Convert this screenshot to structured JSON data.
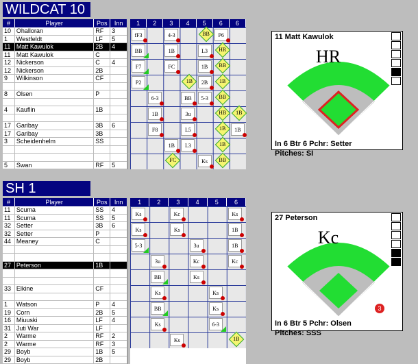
{
  "teams": [
    {
      "name": "WILDCAT 10",
      "headers": [
        "#",
        "Player",
        "Pos",
        "Inn"
      ],
      "innings": [
        "1",
        "2",
        "3",
        "4",
        "5",
        "6",
        "6"
      ],
      "rows": [
        [
          "10",
          "Ohalloran",
          "RF",
          "3"
        ],
        [
          "1",
          "Westfeldt",
          "LF",
          "5"
        ],
        [
          "11",
          "Matt Kawulok",
          "2B",
          "4"
        ],
        [
          "11",
          "Matt Kawulok",
          "C",
          ""
        ],
        [
          "12",
          "Nickerson",
          "C",
          "4"
        ],
        [
          "12",
          "Nickerson",
          "2B",
          ""
        ],
        [
          "9",
          "Wilkinson",
          "CF",
          ""
        ],
        [
          "",
          "",
          "",
          ""
        ],
        [
          "8",
          "Olsen",
          "P",
          ""
        ],
        [
          "",
          "",
          "",
          ""
        ],
        [
          "4",
          "Kauflin",
          "1B",
          ""
        ],
        [
          "",
          "",
          "",
          ""
        ],
        [
          "17",
          "Garibay",
          "3B",
          "6"
        ],
        [
          "17",
          "Garibay",
          "3B",
          ""
        ],
        [
          "3",
          "Scheidenhelm",
          "SS",
          ""
        ],
        [
          "",
          "",
          "",
          ""
        ],
        [
          "",
          "",
          "",
          ""
        ],
        [
          "5",
          "Swan",
          "RF",
          "5"
        ]
      ],
      "selected": 2
    },
    {
      "name": "SH 1",
      "headers": [
        "#",
        "Player",
        "Pos",
        "Inn"
      ],
      "innings": [
        "1",
        "2",
        "3",
        "4",
        "5",
        "6"
      ],
      "rows": [
        [
          "11",
          "Scuma",
          "SS",
          "4"
        ],
        [
          "11",
          "Scuma",
          "SS",
          "5"
        ],
        [
          "32",
          "Setter",
          "3B",
          "6"
        ],
        [
          "32",
          "Setter",
          "P",
          ""
        ],
        [
          "44",
          "Meaney",
          "C",
          ""
        ],
        [
          "",
          "",
          "",
          ""
        ],
        [
          "",
          "",
          "",
          ""
        ],
        [
          "27",
          "Peterson",
          "1B",
          ""
        ],
        [
          "",
          "",
          "",
          ""
        ],
        [
          "",
          "",
          "",
          ""
        ],
        [
          "33",
          "Elkine",
          "CF",
          ""
        ],
        [
          "",
          "",
          "",
          ""
        ],
        [
          "1",
          "Watson",
          "P",
          "4"
        ],
        [
          "19",
          "Corn",
          "2B",
          "5"
        ],
        [
          "16",
          "Miuuski",
          "LF",
          "4"
        ],
        [
          "31",
          "Juti War",
          "LF",
          ""
        ],
        [
          "2",
          "Warme",
          "RF",
          "2"
        ],
        [
          "2",
          "Warme",
          "RF",
          "3"
        ],
        [
          "29",
          "Boyb",
          "1B",
          "5"
        ],
        [
          "29",
          "Boyb",
          "2B",
          ""
        ]
      ],
      "selected": 7
    }
  ],
  "marks1": [
    [
      "fF3",
      "dot",
      0,
      0
    ],
    [
      "4-3",
      "dot",
      2,
      0
    ],
    [
      "BB",
      "dia",
      4,
      0
    ],
    [
      "P6",
      "dot",
      5,
      0
    ],
    [
      "BB",
      "green",
      0,
      1
    ],
    [
      "1B",
      "dot",
      2,
      1
    ],
    [
      "L3",
      "dot",
      4,
      1
    ],
    [
      "HR",
      "dia",
      5,
      1
    ],
    [
      "F7",
      "green",
      0,
      2
    ],
    [
      "FC",
      "dot",
      2,
      2
    ],
    [
      "1B",
      "dot",
      4,
      2
    ],
    [
      "BB",
      "dia",
      5,
      2
    ],
    [
      "P2",
      "green",
      0,
      3
    ],
    [
      "1B",
      "dia",
      3,
      3
    ],
    [
      "2B",
      "dot",
      4,
      3
    ],
    [
      "1B",
      "dia",
      5,
      3
    ],
    [
      "6-3",
      "dot",
      1,
      4
    ],
    [
      "BB",
      "dot",
      3,
      4
    ],
    [
      "5-3",
      "dot",
      4,
      4
    ],
    [
      "BB",
      "dia",
      5,
      4
    ],
    [
      "1B",
      "dot",
      1,
      5
    ],
    [
      "3u",
      "dot",
      3,
      5
    ],
    [
      "HB",
      "dia",
      5,
      5
    ],
    [
      "1B",
      "dia",
      6,
      5
    ],
    [
      "F8",
      "dot",
      1,
      6
    ],
    [
      "L5",
      "dot",
      3,
      6
    ],
    [
      "1B",
      "dia",
      5,
      6
    ],
    [
      "1B",
      "dot",
      6,
      6
    ],
    [
      "1B",
      "dot",
      2,
      7
    ],
    [
      "L3",
      "dot",
      3,
      7
    ],
    [
      "1B",
      "dia",
      5,
      7
    ],
    [
      "FC",
      "dia",
      2,
      8
    ],
    [
      "Ks",
      "dot",
      4,
      8
    ],
    [
      "BB",
      "dia",
      5,
      8
    ]
  ],
  "marks2": [
    [
      "Ks",
      "dot",
      0,
      0
    ],
    [
      "Kc",
      "dot",
      2,
      0
    ],
    [
      "Ks",
      "dot",
      5,
      0
    ],
    [
      "Ks",
      "dot",
      0,
      1
    ],
    [
      "Ks",
      "dot",
      2,
      1
    ],
    [
      "1B",
      "dot",
      5,
      1
    ],
    [
      "5-3",
      "green",
      0,
      2
    ],
    [
      "3u",
      "dot",
      3,
      2
    ],
    [
      "1B",
      "dot",
      5,
      2
    ],
    [
      "3u",
      "dot",
      1,
      3
    ],
    [
      "Kc",
      "dot",
      3,
      3
    ],
    [
      "Kc",
      "dot",
      5,
      3
    ],
    [
      "BB",
      "green",
      1,
      4
    ],
    [
      "Ks",
      "dot",
      3,
      4
    ],
    [
      "Ks",
      "dot",
      1,
      5
    ],
    [
      "Ks",
      "dot",
      4,
      5
    ],
    [
      "BB",
      "green",
      1,
      6
    ],
    [
      "Ks",
      "dot",
      4,
      6
    ],
    [
      "Ks",
      "dot",
      1,
      7
    ],
    [
      "6-3",
      "green",
      4,
      7
    ],
    [
      "Ks",
      "dot",
      2,
      8
    ],
    [
      "1B",
      "dia",
      5,
      8
    ]
  ],
  "cards": [
    {
      "title": "11 Matt Kawulok",
      "play": "HR",
      "line1": "In 6 Btr 6    Pchr: Setter",
      "line2": "Pitches: SI"
    },
    {
      "title": "27 Peterson",
      "play": "Kc",
      "line1": "In 6 Btr 5    Pchr: Olsen",
      "line2": "Pitches: SSS",
      "runner": "3"
    }
  ]
}
